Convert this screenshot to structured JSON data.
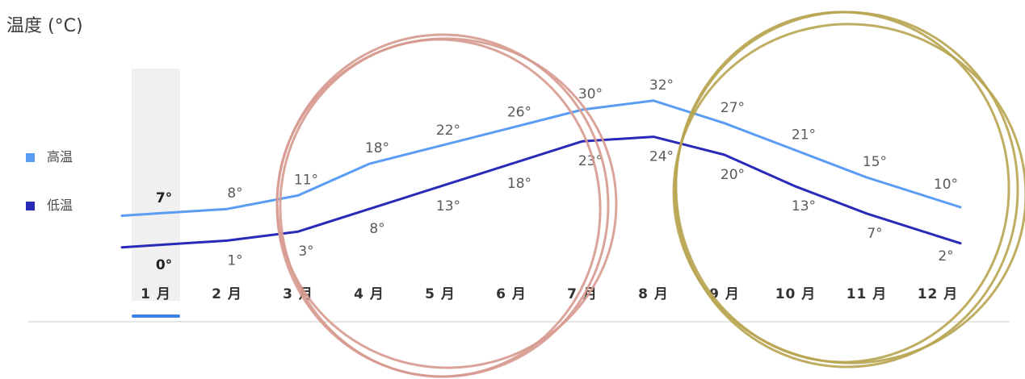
{
  "chart_data": {
    "type": "line",
    "title": "温度 (°C)",
    "categories": [
      "1 月",
      "2 月",
      "3 月",
      "4 月",
      "5 月",
      "6 月",
      "7 月",
      "8 月",
      "9 月",
      "10 月",
      "11 月",
      "12 月"
    ],
    "series": [
      {
        "name": "高温",
        "color": "#5b9cf5",
        "values": [
          7,
          8,
          11,
          18,
          22,
          26,
          30,
          32,
          27,
          21,
          15,
          10
        ],
        "labels": [
          "7°",
          "8°",
          "11°",
          "18°",
          "22°",
          "26°",
          "30°",
          "32°",
          "27°",
          "21°",
          "15°",
          "10°"
        ]
      },
      {
        "name": "低温",
        "color": "#2a2ab8",
        "values": [
          0,
          1,
          3,
          8,
          13,
          18,
          23,
          24,
          20,
          13,
          7,
          2
        ],
        "labels": [
          "0°",
          "1°",
          "3°",
          "8°",
          "13°",
          "18°",
          "23°",
          "24°",
          "20°",
          "13°",
          "7°",
          "2°"
        ]
      }
    ],
    "selected_category": "1 月",
    "legend_position": "left",
    "grid": false
  },
  "annotations": {
    "circle_colors": [
      "#d79a90",
      "#b8a551"
    ]
  }
}
